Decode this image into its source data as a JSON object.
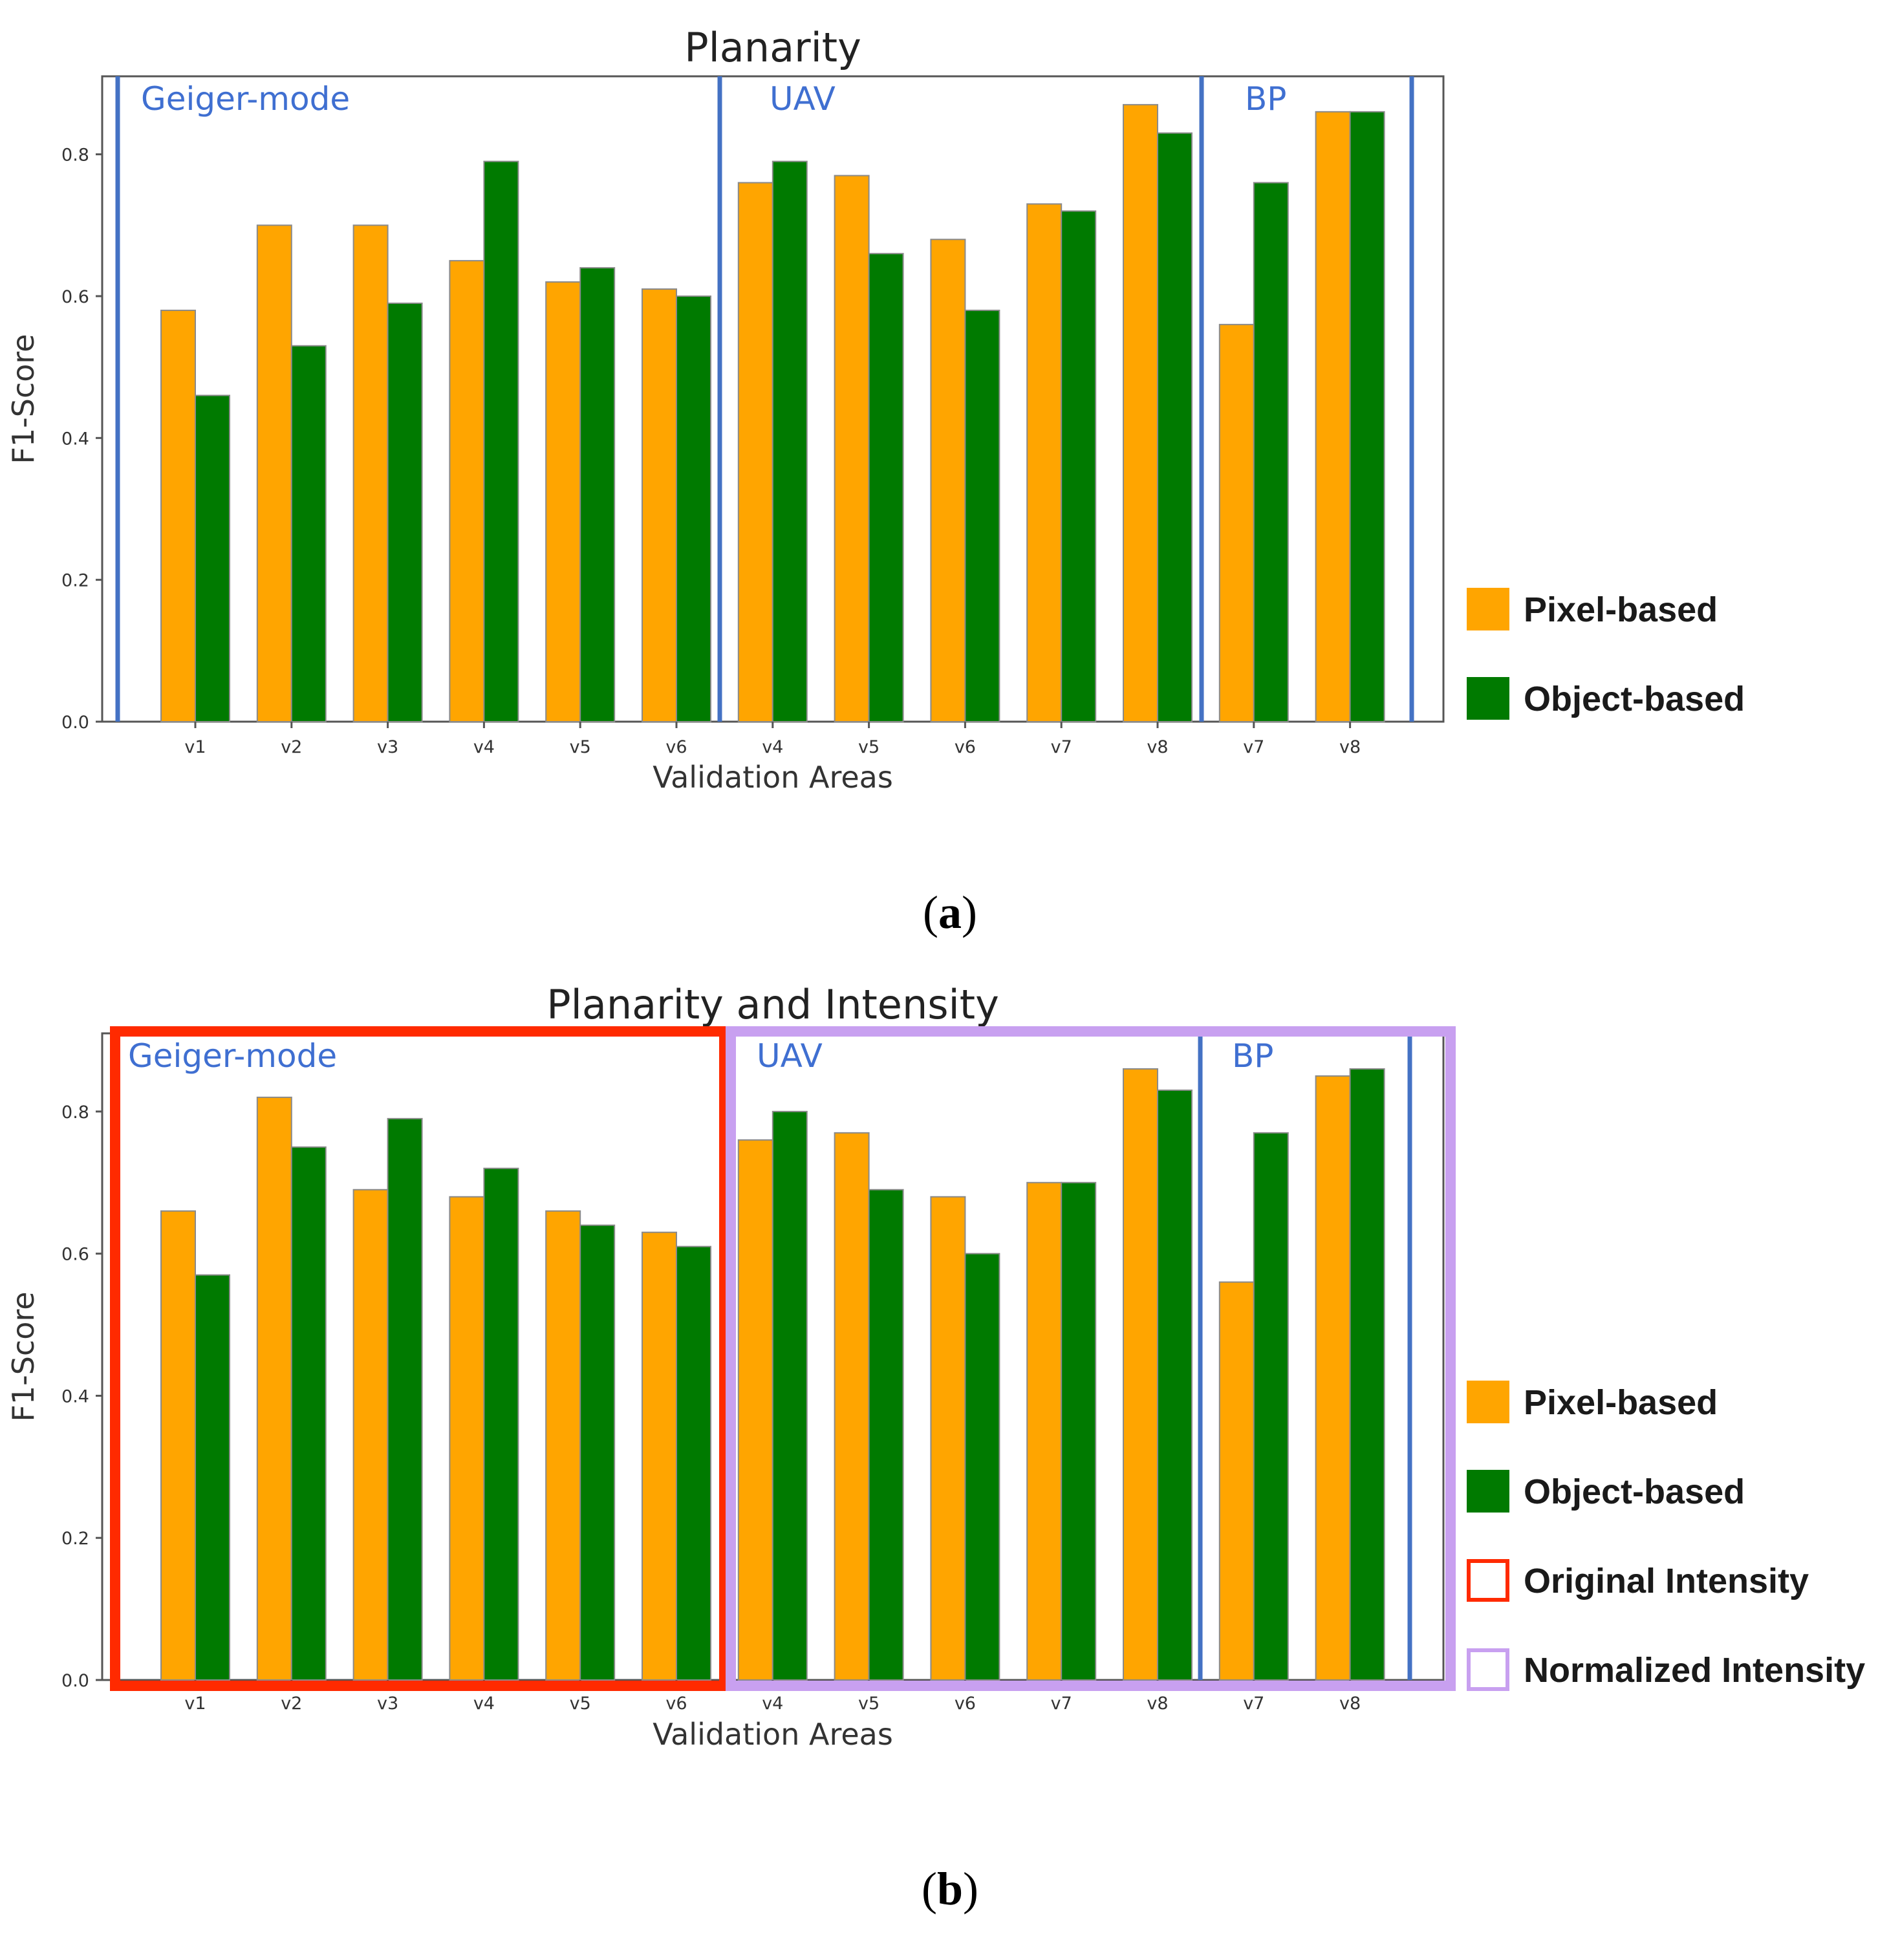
{
  "colors": {
    "pixel": "#FFA500",
    "object": "#007A00",
    "divider": "#4472C4",
    "original_box": "#FF2A00",
    "normalized_box": "#C8A0F0"
  },
  "chart_data": [
    {
      "type": "bar",
      "panel": "(a)",
      "panel_letter": "a",
      "title": "Planarity",
      "xlabel": "Validation Areas",
      "ylabel": "F1-Score",
      "ylim": [
        0,
        0.91
      ],
      "yticks": [
        "0.0",
        "0.2",
        "0.4",
        "0.6",
        "0.8"
      ],
      "ytick_values": [
        0,
        0.2,
        0.4,
        0.6,
        0.8
      ],
      "categories": [
        "v1",
        "v2",
        "v3",
        "v4",
        "v5",
        "v6",
        "v4",
        "v5",
        "v6",
        "v7",
        "v8",
        "v7",
        "v8"
      ],
      "groups": [
        {
          "label": "Geiger-mode",
          "start": 0,
          "end": 5
        },
        {
          "label": "UAV",
          "start": 6,
          "end": 10
        },
        {
          "label": "BP",
          "start": 11,
          "end": 12
        }
      ],
      "series": [
        {
          "name": "Pixel-based",
          "values": [
            0.58,
            0.7,
            0.7,
            0.65,
            0.62,
            0.61,
            0.76,
            0.77,
            0.68,
            0.73,
            0.87,
            0.56,
            0.86
          ]
        },
        {
          "name": "Object-based",
          "values": [
            0.46,
            0.53,
            0.59,
            0.79,
            0.64,
            0.6,
            0.79,
            0.66,
            0.58,
            0.72,
            0.83,
            0.76,
            0.86
          ]
        }
      ],
      "legend": [
        "Pixel-based",
        "Object-based"
      ]
    },
    {
      "type": "bar",
      "panel": "(b)",
      "panel_letter": "b",
      "title": "Planarity and Intensity",
      "xlabel": "Validation Areas",
      "ylabel": "F1-Score",
      "ylim": [
        0,
        0.91
      ],
      "yticks": [
        "0.0",
        "0.2",
        "0.4",
        "0.6",
        "0.8"
      ],
      "ytick_values": [
        0,
        0.2,
        0.4,
        0.6,
        0.8
      ],
      "categories": [
        "v1",
        "v2",
        "v3",
        "v4",
        "v5",
        "v6",
        "v4",
        "v5",
        "v6",
        "v7",
        "v8",
        "v7",
        "v8"
      ],
      "groups": [
        {
          "label": "Geiger-mode",
          "start": 0,
          "end": 5
        },
        {
          "label": "UAV",
          "start": 6,
          "end": 10
        },
        {
          "label": "BP",
          "start": 11,
          "end": 12
        }
      ],
      "series": [
        {
          "name": "Pixel-based",
          "values": [
            0.66,
            0.82,
            0.69,
            0.68,
            0.66,
            0.63,
            0.76,
            0.77,
            0.68,
            0.7,
            0.86,
            0.56,
            0.85
          ]
        },
        {
          "name": "Object-based",
          "values": [
            0.57,
            0.75,
            0.79,
            0.72,
            0.64,
            0.61,
            0.8,
            0.69,
            0.6,
            0.7,
            0.83,
            0.77,
            0.86
          ]
        }
      ],
      "legend": [
        "Pixel-based",
        "Object-based",
        "Original Intensity",
        "Normalized Intensity"
      ],
      "highlight_boxes": [
        {
          "name": "Original Intensity",
          "start": 0,
          "end": 5
        },
        {
          "name": "Normalized Intensity",
          "start": 6,
          "end": 12
        }
      ]
    }
  ]
}
